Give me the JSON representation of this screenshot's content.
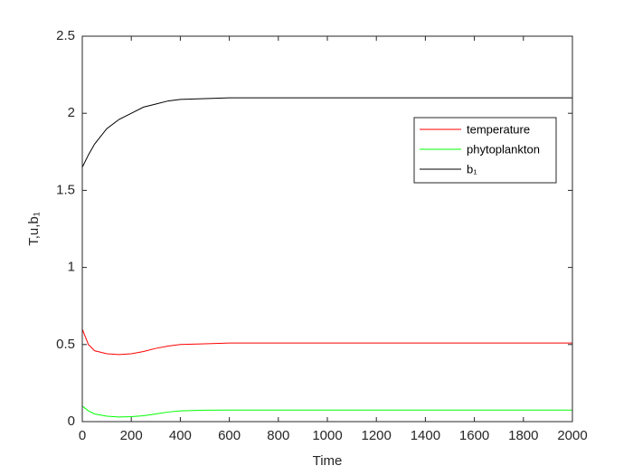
{
  "chart_data": {
    "type": "line",
    "xlabel": "Time",
    "ylabel": "T,u,b₁",
    "x": [
      0,
      25,
      50,
      100,
      150,
      200,
      250,
      300,
      350,
      400,
      500,
      600,
      800,
      1000,
      1500,
      2000
    ],
    "series": [
      {
        "name": "temperature",
        "color": "#ff0000",
        "values": [
          0.6,
          0.5,
          0.46,
          0.44,
          0.435,
          0.44,
          0.455,
          0.475,
          0.49,
          0.5,
          0.505,
          0.51,
          0.51,
          0.51,
          0.51,
          0.51
        ]
      },
      {
        "name": "phytoplankton",
        "color": "#00ff00",
        "values": [
          0.1,
          0.07,
          0.05,
          0.035,
          0.03,
          0.032,
          0.038,
          0.05,
          0.062,
          0.07,
          0.074,
          0.075,
          0.075,
          0.075,
          0.075,
          0.075
        ]
      },
      {
        "name": "b₁",
        "color": "#000000",
        "values": [
          1.65,
          1.73,
          1.8,
          1.9,
          1.96,
          2.0,
          2.04,
          2.06,
          2.08,
          2.09,
          2.095,
          2.1,
          2.1,
          2.1,
          2.1,
          2.1
        ]
      }
    ],
    "xlim": [
      0,
      2000
    ],
    "xticks": [
      0,
      200,
      400,
      600,
      800,
      1000,
      1200,
      1400,
      1600,
      1800,
      2000
    ],
    "ylim": [
      0,
      2.5
    ],
    "yticks": [
      0,
      0.5,
      1,
      1.5,
      2,
      2.5
    ],
    "grid": false,
    "legend": "upper right"
  }
}
